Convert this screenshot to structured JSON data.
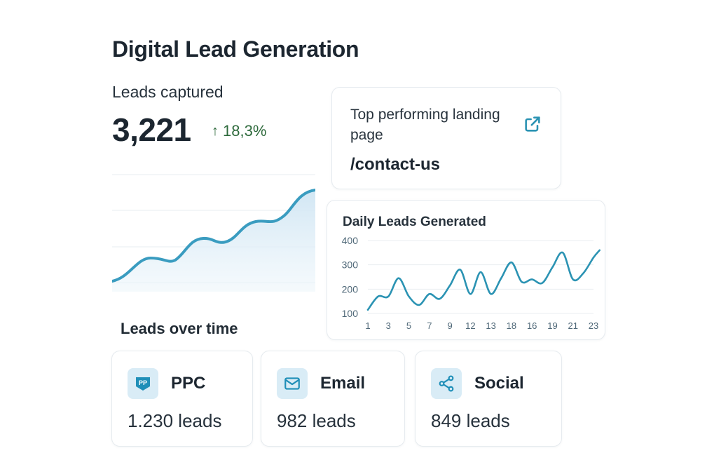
{
  "header": {
    "title": "Digital Lead Generation"
  },
  "kpi": {
    "label": "Leads captured",
    "value": "3,221",
    "change": "18,3%",
    "change_direction": "up",
    "change_color": "#2e6a3c"
  },
  "hero_chart": {
    "caption": "Leads over time",
    "line_color": "#3a9cc0",
    "fill_color": "#dcecf6"
  },
  "landing_page": {
    "label": "Top performing landing page",
    "value": "/contact-us",
    "icon": "external-link-icon"
  },
  "chart_data": {
    "type": "line",
    "title": "Daily Leads Generated",
    "xlabel": "",
    "ylabel": "",
    "ylim": [
      80,
      420
    ],
    "yticks": [
      100,
      200,
      300,
      400
    ],
    "xticklabels": [
      "1",
      "3",
      "5",
      "7",
      "9",
      "12",
      "13",
      "18",
      "16",
      "19",
      "21",
      "23"
    ],
    "series": [
      {
        "color": "#2b93b3",
        "x": [
          0,
          0.5,
          1,
          1.5,
          2,
          2.5,
          3,
          3.5,
          4,
          4.5,
          5,
          5.5,
          6,
          6.5,
          7,
          7.5,
          8,
          8.5,
          9,
          9.5,
          10,
          10.5,
          11,
          11.3
        ],
        "values": [
          115,
          170,
          170,
          245,
          170,
          135,
          180,
          160,
          215,
          280,
          180,
          270,
          180,
          245,
          310,
          230,
          240,
          225,
          290,
          350,
          240,
          265,
          330,
          360
        ]
      }
    ]
  },
  "channels": [
    {
      "name": "PPC",
      "count": "1.230 leads",
      "icon": "ppc-icon",
      "icon_text": "PP"
    },
    {
      "name": "Email",
      "count": "982 leads",
      "icon": "envelope-icon"
    },
    {
      "name": "Social",
      "count": "849 leads",
      "icon": "share-icon"
    }
  ],
  "accent": "#2b93b3"
}
